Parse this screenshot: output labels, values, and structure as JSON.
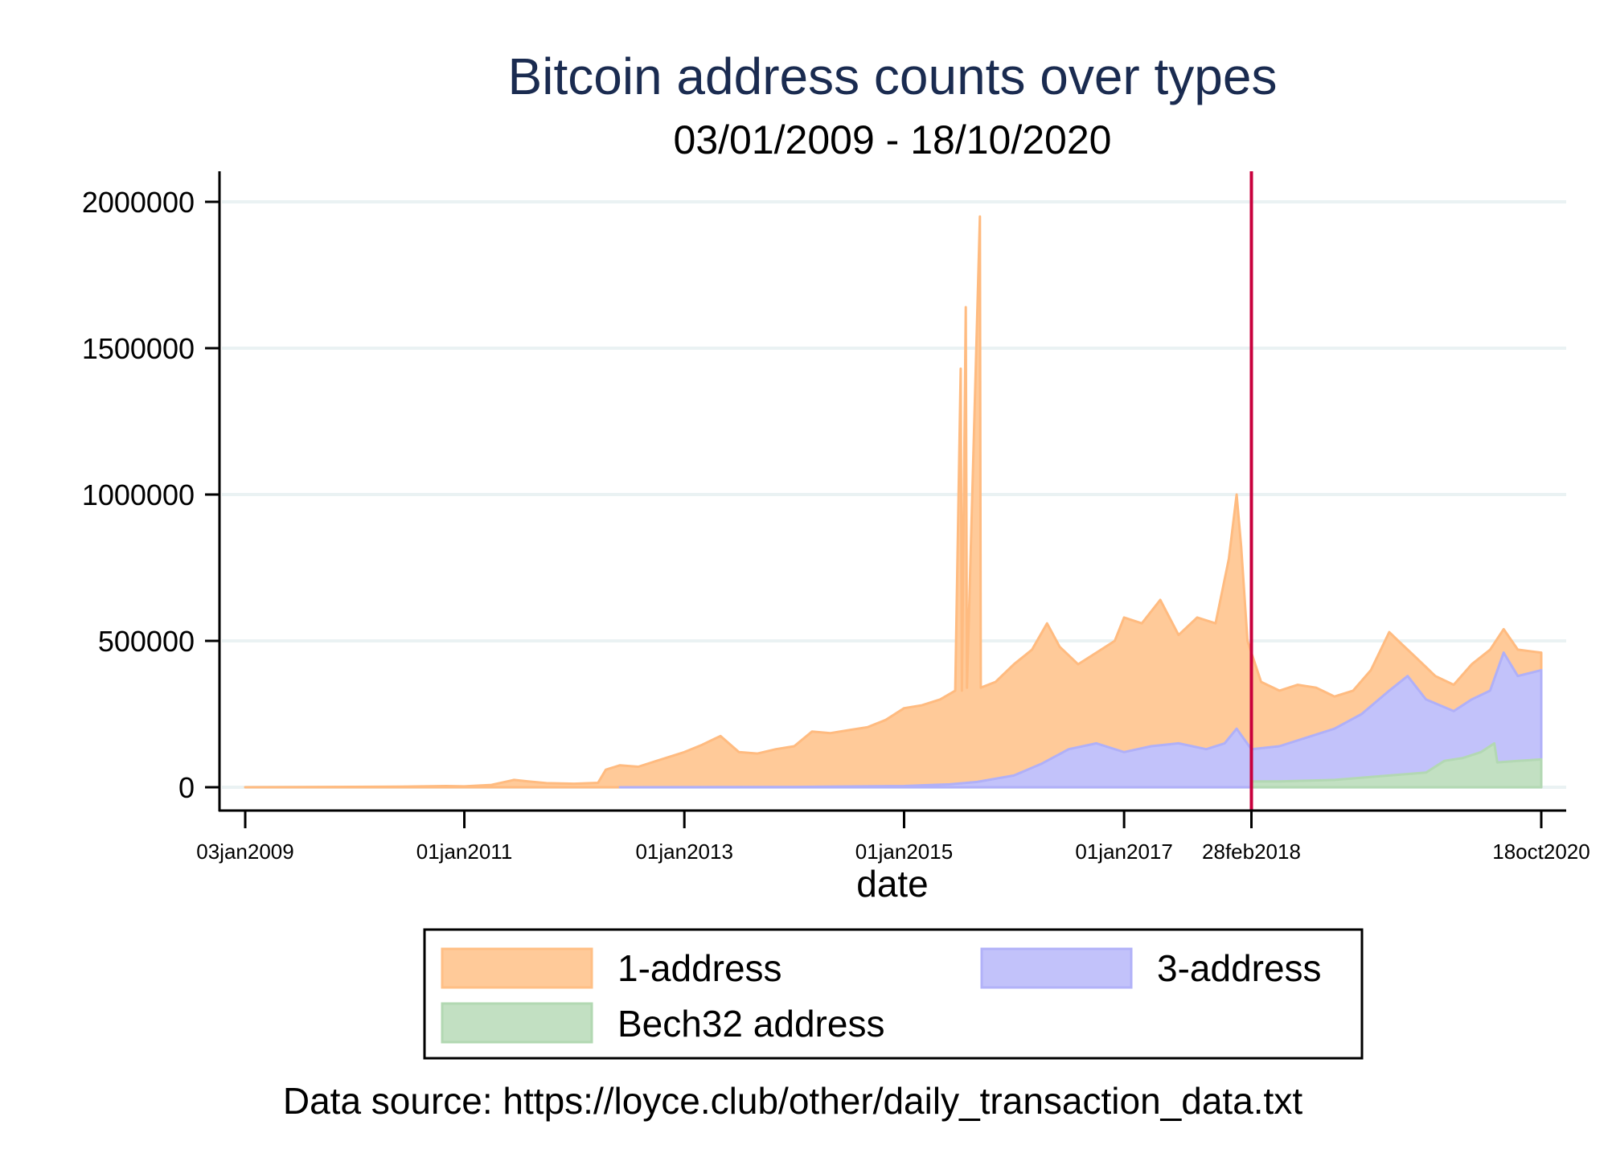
{
  "chart_data": {
    "type": "area",
    "title": "Bitcoin address counts over types",
    "subtitle": "03/01/2009 - 18/10/2020",
    "xlabel": "date",
    "ylabel": "",
    "note": "Data source: https://loyce.club/other/daily_transaction_data.txt",
    "x_range": [
      "2009-01-03",
      "2020-10-18"
    ],
    "ylim": [
      0,
      2000000
    ],
    "y_ticks": [
      {
        "value": 0,
        "label": "0"
      },
      {
        "value": 500000,
        "label": "500000"
      },
      {
        "value": 1000000,
        "label": "1000000"
      },
      {
        "value": 1500000,
        "label": "1500000"
      },
      {
        "value": 2000000,
        "label": "2000000"
      }
    ],
    "x_ticks": [
      {
        "date": "2009-01-03",
        "label": "03jan2009"
      },
      {
        "date": "2011-01-01",
        "label": "01jan2011"
      },
      {
        "date": "2013-01-01",
        "label": "01jan2013"
      },
      {
        "date": "2015-01-01",
        "label": "01jan2015"
      },
      {
        "date": "2017-01-01",
        "label": "01jan2017"
      },
      {
        "date": "2018-02-28",
        "label": "28feb2018"
      },
      {
        "date": "2020-10-18",
        "label": "18oct2020"
      }
    ],
    "grid": true,
    "reference_line": {
      "date": "2018-02-28",
      "color": "#c8003c"
    },
    "legend": {
      "position": "bottom",
      "columns": 2
    },
    "series": [
      {
        "name": "1-address",
        "color": "#ffca99",
        "edge_color": "#ffbb80",
        "points": [
          [
            "2009-01-03",
            0
          ],
          [
            "2010-06-01",
            2000
          ],
          [
            "2010-11-01",
            4000
          ],
          [
            "2011-01-01",
            3000
          ],
          [
            "2011-04-01",
            8000
          ],
          [
            "2011-06-15",
            25000
          ],
          [
            "2011-08-01",
            20000
          ],
          [
            "2011-10-01",
            14000
          ],
          [
            "2012-01-01",
            12000
          ],
          [
            "2012-03-20",
            15000
          ],
          [
            "2012-04-15",
            60000
          ],
          [
            "2012-06-01",
            75000
          ],
          [
            "2012-08-01",
            70000
          ],
          [
            "2012-10-01",
            90000
          ],
          [
            "2013-01-01",
            120000
          ],
          [
            "2013-03-01",
            145000
          ],
          [
            "2013-05-01",
            175000
          ],
          [
            "2013-07-01",
            120000
          ],
          [
            "2013-09-01",
            115000
          ],
          [
            "2013-11-01",
            130000
          ],
          [
            "2014-01-01",
            140000
          ],
          [
            "2014-03-01",
            190000
          ],
          [
            "2014-05-01",
            185000
          ],
          [
            "2014-07-01",
            195000
          ],
          [
            "2014-09-01",
            205000
          ],
          [
            "2014-11-01",
            230000
          ],
          [
            "2015-01-01",
            270000
          ],
          [
            "2015-03-01",
            280000
          ],
          [
            "2015-05-01",
            300000
          ],
          [
            "2015-06-20",
            330000
          ],
          [
            "2015-07-08",
            1430000
          ],
          [
            "2015-07-12",
            330000
          ],
          [
            "2015-07-25",
            1640000
          ],
          [
            "2015-07-29",
            340000
          ],
          [
            "2015-09-10",
            1950000
          ],
          [
            "2015-09-13",
            340000
          ],
          [
            "2015-11-01",
            360000
          ],
          [
            "2016-01-01",
            420000
          ],
          [
            "2016-03-01",
            470000
          ],
          [
            "2016-04-20",
            560000
          ],
          [
            "2016-06-01",
            480000
          ],
          [
            "2016-08-01",
            420000
          ],
          [
            "2016-10-01",
            460000
          ],
          [
            "2016-12-01",
            500000
          ],
          [
            "2017-01-01",
            580000
          ],
          [
            "2017-03-01",
            560000
          ],
          [
            "2017-05-01",
            640000
          ],
          [
            "2017-07-01",
            520000
          ],
          [
            "2017-09-01",
            580000
          ],
          [
            "2017-11-01",
            560000
          ],
          [
            "2017-12-15",
            780000
          ],
          [
            "2018-01-10",
            1000000
          ],
          [
            "2018-01-25",
            820000
          ],
          [
            "2018-02-15",
            500000
          ],
          [
            "2018-04-01",
            360000
          ],
          [
            "2018-06-01",
            330000
          ],
          [
            "2018-08-01",
            350000
          ],
          [
            "2018-10-01",
            340000
          ],
          [
            "2018-12-01",
            310000
          ],
          [
            "2019-02-01",
            330000
          ],
          [
            "2019-04-01",
            400000
          ],
          [
            "2019-06-01",
            530000
          ],
          [
            "2019-07-01",
            500000
          ],
          [
            "2019-09-01",
            440000
          ],
          [
            "2019-11-01",
            380000
          ],
          [
            "2020-01-01",
            350000
          ],
          [
            "2020-03-01",
            420000
          ],
          [
            "2020-05-01",
            470000
          ],
          [
            "2020-06-15",
            540000
          ],
          [
            "2020-08-01",
            470000
          ],
          [
            "2020-10-18",
            460000
          ]
        ]
      },
      {
        "name": "3-address",
        "color": "#c2c2fa",
        "edge_color": "#b0b0f8",
        "points": [
          [
            "2012-06-01",
            0
          ],
          [
            "2014-01-01",
            1000
          ],
          [
            "2015-01-01",
            4000
          ],
          [
            "2015-06-01",
            10000
          ],
          [
            "2015-09-01",
            18000
          ],
          [
            "2016-01-01",
            40000
          ],
          [
            "2016-04-01",
            80000
          ],
          [
            "2016-07-01",
            130000
          ],
          [
            "2016-10-01",
            150000
          ],
          [
            "2017-01-01",
            120000
          ],
          [
            "2017-04-01",
            140000
          ],
          [
            "2017-07-01",
            150000
          ],
          [
            "2017-10-01",
            130000
          ],
          [
            "2017-12-01",
            150000
          ],
          [
            "2018-01-10",
            200000
          ],
          [
            "2018-02-28",
            130000
          ],
          [
            "2018-06-01",
            140000
          ],
          [
            "2018-09-01",
            170000
          ],
          [
            "2018-12-01",
            200000
          ],
          [
            "2019-03-01",
            250000
          ],
          [
            "2019-06-01",
            330000
          ],
          [
            "2019-08-01",
            380000
          ],
          [
            "2019-10-01",
            300000
          ],
          [
            "2020-01-01",
            260000
          ],
          [
            "2020-03-01",
            300000
          ],
          [
            "2020-05-01",
            330000
          ],
          [
            "2020-06-15",
            460000
          ],
          [
            "2020-08-01",
            380000
          ],
          [
            "2020-10-18",
            400000
          ]
        ]
      },
      {
        "name": "Bech32 address",
        "color": "#c2e0c2",
        "edge_color": "#b3d8b3",
        "points": [
          [
            "2018-02-28",
            0
          ],
          [
            "2018-03-01",
            20000
          ],
          [
            "2018-06-01",
            20000
          ],
          [
            "2018-12-01",
            25000
          ],
          [
            "2019-06-01",
            40000
          ],
          [
            "2019-10-01",
            50000
          ],
          [
            "2019-12-01",
            90000
          ],
          [
            "2020-02-01",
            100000
          ],
          [
            "2020-04-01",
            120000
          ],
          [
            "2020-05-15",
            150000
          ],
          [
            "2020-05-25",
            85000
          ],
          [
            "2020-08-01",
            90000
          ],
          [
            "2020-10-18",
            95000
          ]
        ]
      }
    ]
  },
  "legend": {
    "items": [
      {
        "label": "1-address",
        "color": "#ffca99",
        "border": "#ffbf85"
      },
      {
        "label": "3-address",
        "color": "#c2c2fa",
        "border": "#b2b2f8"
      },
      {
        "label": "Bech32 address",
        "color": "#c2e0c2",
        "border": "#b2d8b2"
      }
    ]
  }
}
